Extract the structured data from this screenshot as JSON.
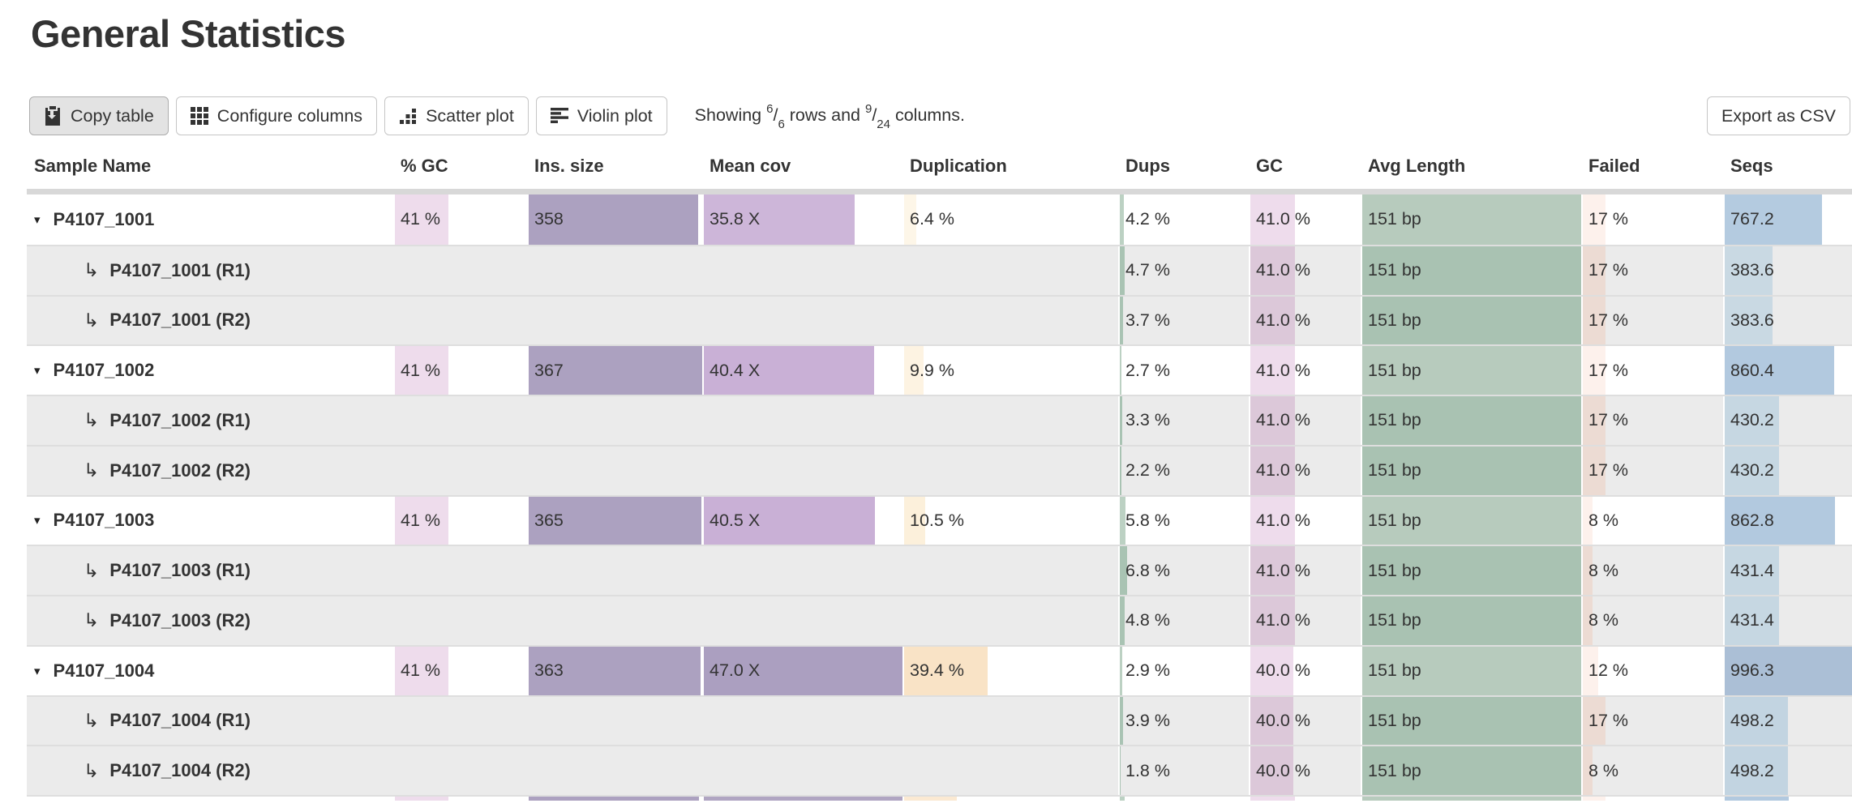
{
  "page": {
    "title": "General Statistics"
  },
  "toolbar": {
    "copy_table_label": "Copy table",
    "configure_columns_label": "Configure columns",
    "scatter_plot_label": "Scatter plot",
    "violin_plot_label": "Violin plot",
    "export_csv_label": "Export as CSV",
    "icons": [
      "clipboard-icon",
      "grid-icon",
      "scatter-dots-icon",
      "violin-bars-icon"
    ],
    "showing": {
      "prefix": "Showing ",
      "rows_shown": "6",
      "frac_sep1": "/",
      "rows_total": "6",
      "mid": " rows and ",
      "cols_shown": "9",
      "frac_sep2": "/",
      "cols_total": "24",
      "suffix": " columns."
    }
  },
  "glyphs": {
    "caret": "▾",
    "subrow_arrow": "↳"
  },
  "table": {
    "columns": [
      {
        "key": "sample",
        "label": "Sample Name"
      },
      {
        "key": "gc_pct",
        "label": "% GC"
      },
      {
        "key": "ins",
        "label": "Ins. size"
      },
      {
        "key": "meancov",
        "label": "Mean cov"
      },
      {
        "key": "dup",
        "label": "Duplication"
      },
      {
        "key": "dups",
        "label": "Dups"
      },
      {
        "key": "gc",
        "label": "GC"
      },
      {
        "key": "avg",
        "label": "Avg Length"
      },
      {
        "key": "failed",
        "label": "Failed"
      },
      {
        "key": "seqs",
        "label": "Seqs"
      }
    ],
    "rows": [
      {
        "type": "main",
        "name": "P4107_1001",
        "cells": {
          "gc_pct": {
            "t": "41 %",
            "f": 0.41,
            "c": "#eedcec"
          },
          "ins": {
            "t": "358",
            "f": 0.976,
            "c": "#aca1c0"
          },
          "meancov": {
            "t": "35.8 X",
            "f": 0.762,
            "c": "#cdb6d9"
          },
          "dup": {
            "t": "6.4 %",
            "f": 0.064,
            "c": "#fdf6e8"
          },
          "dups": {
            "t": "4.2 %",
            "f": 0.042,
            "c": "#bcd1c3"
          },
          "gc": {
            "t": "41.0 %",
            "f": 0.41,
            "c": "#eedcec"
          },
          "avg": {
            "t": "151 bp",
            "f": 1.0,
            "c": "#b7cbbd"
          },
          "failed": {
            "t": "17 %",
            "f": 0.17,
            "c": "#fdf1ec"
          },
          "seqs": {
            "t": "767.2",
            "f": 0.77,
            "c": "#b4cbe0"
          }
        }
      },
      {
        "type": "sub",
        "name": "P4107_1001 (R1)",
        "cells": {
          "dups": {
            "t": "4.7 %",
            "f": 0.047,
            "c": "#a9c3b3"
          },
          "gc": {
            "t": "41.0 %",
            "f": 0.41,
            "c": "#dcc8d9"
          },
          "avg": {
            "t": "151 bp",
            "f": 1.0,
            "c": "#a9c2b2"
          },
          "failed": {
            "t": "17 %",
            "f": 0.17,
            "c": "#ecdbd3"
          },
          "seqs": {
            "t": "383.6",
            "f": 0.385,
            "c": "#c9d9e3"
          }
        }
      },
      {
        "type": "sub",
        "name": "P4107_1001 (R2)",
        "cells": {
          "dups": {
            "t": "3.7 %",
            "f": 0.037,
            "c": "#a9c3b3"
          },
          "gc": {
            "t": "41.0 %",
            "f": 0.41,
            "c": "#dcc8d9"
          },
          "avg": {
            "t": "151 bp",
            "f": 1.0,
            "c": "#a9c2b2"
          },
          "failed": {
            "t": "17 %",
            "f": 0.17,
            "c": "#ecdbd3"
          },
          "seqs": {
            "t": "383.6",
            "f": 0.385,
            "c": "#c9d9e3"
          }
        }
      },
      {
        "type": "main",
        "name": "P4107_1002",
        "cells": {
          "gc_pct": {
            "t": "41 %",
            "f": 0.41,
            "c": "#eedcec"
          },
          "ins": {
            "t": "367",
            "f": 1.0,
            "c": "#aca1c0"
          },
          "meancov": {
            "t": "40.4 X",
            "f": 0.86,
            "c": "#c9b0d6"
          },
          "dup": {
            "t": "9.9 %",
            "f": 0.099,
            "c": "#fdf3e2"
          },
          "dups": {
            "t": "2.7 %",
            "f": 0.027,
            "c": "#bcd1c3"
          },
          "gc": {
            "t": "41.0 %",
            "f": 0.41,
            "c": "#eedcec"
          },
          "avg": {
            "t": "151 bp",
            "f": 1.0,
            "c": "#b7cbbd"
          },
          "failed": {
            "t": "17 %",
            "f": 0.17,
            "c": "#fdf1ec"
          },
          "seqs": {
            "t": "860.4",
            "f": 0.864,
            "c": "#b2c9df"
          }
        }
      },
      {
        "type": "sub",
        "name": "P4107_1002 (R1)",
        "cells": {
          "dups": {
            "t": "3.3 %",
            "f": 0.033,
            "c": "#a9c3b3"
          },
          "gc": {
            "t": "41.0 %",
            "f": 0.41,
            "c": "#dcc8d9"
          },
          "avg": {
            "t": "151 bp",
            "f": 1.0,
            "c": "#a9c2b2"
          },
          "failed": {
            "t": "17 %",
            "f": 0.17,
            "c": "#ecdbd3"
          },
          "seqs": {
            "t": "430.2",
            "f": 0.432,
            "c": "#c6d7e2"
          }
        }
      },
      {
        "type": "sub",
        "name": "P4107_1002 (R2)",
        "cells": {
          "dups": {
            "t": "2.2 %",
            "f": 0.022,
            "c": "#a9c3b3"
          },
          "gc": {
            "t": "41.0 %",
            "f": 0.41,
            "c": "#dcc8d9"
          },
          "avg": {
            "t": "151 bp",
            "f": 1.0,
            "c": "#a9c2b2"
          },
          "failed": {
            "t": "17 %",
            "f": 0.17,
            "c": "#ecdbd3"
          },
          "seqs": {
            "t": "430.2",
            "f": 0.432,
            "c": "#c6d7e2"
          }
        }
      },
      {
        "type": "main",
        "name": "P4107_1003",
        "cells": {
          "gc_pct": {
            "t": "41 %",
            "f": 0.41,
            "c": "#eedcec"
          },
          "ins": {
            "t": "365",
            "f": 0.995,
            "c": "#aca1c0"
          },
          "meancov": {
            "t": "40.5 X",
            "f": 0.862,
            "c": "#c9b0d6"
          },
          "dup": {
            "t": "10.5 %",
            "f": 0.105,
            "c": "#fcf0db"
          },
          "dups": {
            "t": "5.8 %",
            "f": 0.058,
            "c": "#bcd1c3"
          },
          "gc": {
            "t": "41.0 %",
            "f": 0.41,
            "c": "#eedcec"
          },
          "avg": {
            "t": "151 bp",
            "f": 1.0,
            "c": "#b7cbbd"
          },
          "failed": {
            "t": "8 %",
            "f": 0.08,
            "c": "#fdf1ec"
          },
          "seqs": {
            "t": "862.8",
            "f": 0.866,
            "c": "#b2c9df"
          }
        }
      },
      {
        "type": "sub",
        "name": "P4107_1003 (R1)",
        "cells": {
          "dups": {
            "t": "6.8 %",
            "f": 0.068,
            "c": "#a9c3b3"
          },
          "gc": {
            "t": "41.0 %",
            "f": 0.41,
            "c": "#dcc8d9"
          },
          "avg": {
            "t": "151 bp",
            "f": 1.0,
            "c": "#a9c2b2"
          },
          "failed": {
            "t": "8 %",
            "f": 0.08,
            "c": "#ecdbd3"
          },
          "seqs": {
            "t": "431.4",
            "f": 0.433,
            "c": "#c6d7e2"
          }
        }
      },
      {
        "type": "sub",
        "name": "P4107_1003 (R2)",
        "cells": {
          "dups": {
            "t": "4.8 %",
            "f": 0.048,
            "c": "#a9c3b3"
          },
          "gc": {
            "t": "41.0 %",
            "f": 0.41,
            "c": "#dcc8d9"
          },
          "avg": {
            "t": "151 bp",
            "f": 1.0,
            "c": "#a9c2b2"
          },
          "failed": {
            "t": "8 %",
            "f": 0.08,
            "c": "#ecdbd3"
          },
          "seqs": {
            "t": "431.4",
            "f": 0.433,
            "c": "#c6d7e2"
          }
        }
      },
      {
        "type": "main",
        "name": "P4107_1004",
        "cells": {
          "gc_pct": {
            "t": "41 %",
            "f": 0.41,
            "c": "#eedcec"
          },
          "ins": {
            "t": "363",
            "f": 0.989,
            "c": "#aca1c0"
          },
          "meancov": {
            "t": "47.0 X",
            "f": 1.0,
            "c": "#ab9fc0"
          },
          "dup": {
            "t": "39.4 %",
            "f": 0.394,
            "c": "#f9e3c6"
          },
          "dups": {
            "t": "2.9 %",
            "f": 0.029,
            "c": "#bcd1c3"
          },
          "gc": {
            "t": "40.0 %",
            "f": 0.4,
            "c": "#eedcec"
          },
          "avg": {
            "t": "151 bp",
            "f": 1.0,
            "c": "#b7cbbd"
          },
          "failed": {
            "t": "12 %",
            "f": 0.12,
            "c": "#fdf1ec"
          },
          "seqs": {
            "t": "996.3",
            "f": 1.0,
            "c": "#abbfd6"
          }
        }
      },
      {
        "type": "sub",
        "name": "P4107_1004 (R1)",
        "cells": {
          "dups": {
            "t": "3.9 %",
            "f": 0.039,
            "c": "#a9c3b3"
          },
          "gc": {
            "t": "40.0 %",
            "f": 0.4,
            "c": "#dcc8d9"
          },
          "avg": {
            "t": "151 bp",
            "f": 1.0,
            "c": "#a9c2b2"
          },
          "failed": {
            "t": "17 %",
            "f": 0.17,
            "c": "#ecdbd3"
          },
          "seqs": {
            "t": "498.2",
            "f": 0.5,
            "c": "#c2d4e1"
          }
        }
      },
      {
        "type": "sub",
        "name": "P4107_1004 (R2)",
        "cells": {
          "dups": {
            "t": "1.8 %",
            "f": 0.018,
            "c": "#a9c3b3"
          },
          "gc": {
            "t": "40.0 %",
            "f": 0.4,
            "c": "#dcc8d9"
          },
          "avg": {
            "t": "151 bp",
            "f": 1.0,
            "c": "#a9c2b2"
          },
          "failed": {
            "t": "8 %",
            "f": 0.08,
            "c": "#ecdbd3"
          },
          "seqs": {
            "t": "498.2",
            "f": 0.5,
            "c": "#c2d4e1"
          }
        }
      },
      {
        "type": "main",
        "partial": true,
        "name": "",
        "cells": {
          "gc_pct": {
            "t": "",
            "f": 0.41,
            "c": "#eedcec"
          },
          "ins": {
            "t": "",
            "f": 0.98,
            "c": "#aca1c0"
          },
          "meancov": {
            "t": "",
            "f": 1.0,
            "c": "#b0a5c2"
          },
          "dup": {
            "t": "",
            "f": 0.25,
            "c": "#fbe9d2"
          },
          "dups": {
            "t": "",
            "f": 0.05,
            "c": "#bcd1c3"
          },
          "gc": {
            "t": "",
            "f": 0.41,
            "c": "#eedcec"
          },
          "avg": {
            "t": "",
            "f": 1.0,
            "c": "#b7cbbd"
          },
          "failed": {
            "t": "",
            "f": 0.17,
            "c": "#fdf1ec"
          },
          "seqs": {
            "t": "",
            "f": 0.51,
            "c": "#b2c9df"
          }
        }
      }
    ]
  }
}
